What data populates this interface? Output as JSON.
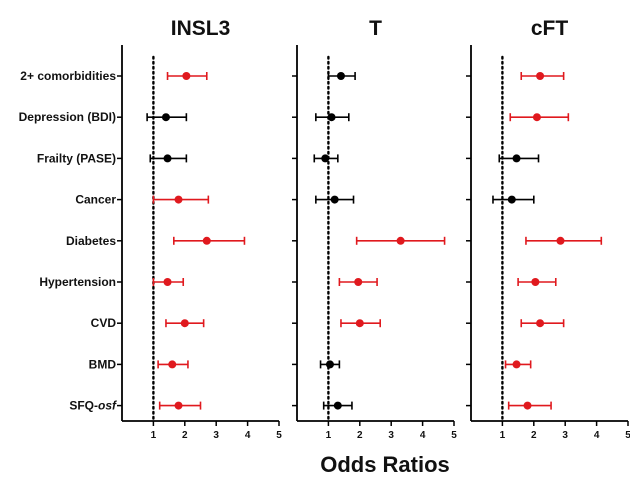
{
  "chart_data": {
    "type": "forest",
    "xlabel": "Odds Ratios",
    "x_ticks": [
      1,
      2,
      3,
      4,
      5
    ],
    "xlim": [
      0,
      5
    ],
    "reference_line": 1,
    "categories": [
      "2+ comorbidities",
      "Depression (BDI)",
      "Frailty (PASE)",
      "Cancer",
      "Diabetes",
      "Hypertension",
      "CVD",
      "BMD",
      "SFQ-osf"
    ],
    "colors": {
      "significant": "#e0191e",
      "not_significant": "#000000"
    },
    "panels": [
      {
        "title": "INSL3",
        "points": [
          {
            "or": 2.05,
            "lo": 1.45,
            "hi": 2.7,
            "significant": true
          },
          {
            "or": 1.4,
            "lo": 0.8,
            "hi": 2.05,
            "significant": false
          },
          {
            "or": 1.45,
            "lo": 0.9,
            "hi": 2.05,
            "significant": false
          },
          {
            "or": 1.8,
            "lo": 1.0,
            "hi": 2.75,
            "significant": true
          },
          {
            "or": 2.7,
            "lo": 1.65,
            "hi": 3.9,
            "significant": true
          },
          {
            "or": 1.45,
            "lo": 1.0,
            "hi": 1.95,
            "significant": true
          },
          {
            "or": 2.0,
            "lo": 1.4,
            "hi": 2.6,
            "significant": true
          },
          {
            "or": 1.6,
            "lo": 1.15,
            "hi": 2.1,
            "significant": true
          },
          {
            "or": 1.8,
            "lo": 1.2,
            "hi": 2.5,
            "significant": true
          }
        ]
      },
      {
        "title": "T",
        "points": [
          {
            "or": 1.4,
            "lo": 1.0,
            "hi": 1.85,
            "significant": false
          },
          {
            "or": 1.1,
            "lo": 0.6,
            "hi": 1.65,
            "significant": false
          },
          {
            "or": 0.9,
            "lo": 0.55,
            "hi": 1.3,
            "significant": false
          },
          {
            "or": 1.2,
            "lo": 0.6,
            "hi": 1.8,
            "significant": false
          },
          {
            "or": 3.3,
            "lo": 1.9,
            "hi": 4.7,
            "significant": true
          },
          {
            "or": 1.95,
            "lo": 1.35,
            "hi": 2.55,
            "significant": true
          },
          {
            "or": 2.0,
            "lo": 1.4,
            "hi": 2.65,
            "significant": true
          },
          {
            "or": 1.05,
            "lo": 0.75,
            "hi": 1.35,
            "significant": false
          },
          {
            "or": 1.3,
            "lo": 0.85,
            "hi": 1.75,
            "significant": false
          }
        ]
      },
      {
        "title": "cFT",
        "points": [
          {
            "or": 2.2,
            "lo": 1.6,
            "hi": 2.95,
            "significant": true
          },
          {
            "or": 2.1,
            "lo": 1.25,
            "hi": 3.1,
            "significant": true
          },
          {
            "or": 1.45,
            "lo": 0.9,
            "hi": 2.15,
            "significant": false
          },
          {
            "or": 1.3,
            "lo": 0.7,
            "hi": 2.0,
            "significant": false
          },
          {
            "or": 2.85,
            "lo": 1.75,
            "hi": 4.15,
            "significant": true
          },
          {
            "or": 2.05,
            "lo": 1.5,
            "hi": 2.7,
            "significant": true
          },
          {
            "or": 2.2,
            "lo": 1.6,
            "hi": 2.95,
            "significant": true
          },
          {
            "or": 1.45,
            "lo": 1.1,
            "hi": 1.9,
            "significant": true
          },
          {
            "or": 1.8,
            "lo": 1.2,
            "hi": 2.55,
            "significant": true
          }
        ]
      }
    ]
  }
}
